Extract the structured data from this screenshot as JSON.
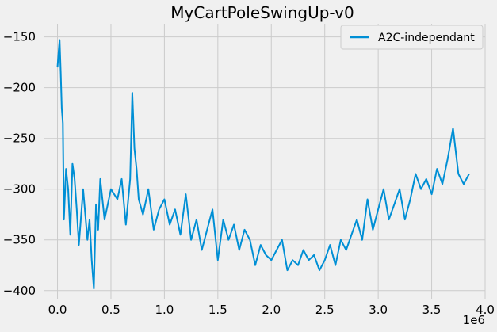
{
  "chart_data": {
    "type": "line",
    "title": "MyCartPoleSwingUp-v0",
    "xlabel": "",
    "ylabel": "",
    "x_offset_label": "1e6",
    "xlim": [
      -130000,
      4000000
    ],
    "ylim": [
      -408,
      -137
    ],
    "xticks": [
      0,
      500000.0,
      1000000.0,
      1500000.0,
      2000000.0,
      2500000.0,
      3000000.0,
      3500000.0,
      4000000.0
    ],
    "xtick_labels": [
      "0.0",
      "0.5",
      "1.0",
      "1.5",
      "2.0",
      "2.5",
      "3.0",
      "3.5",
      "4.0"
    ],
    "yticks": [
      -150,
      -200,
      -250,
      -300,
      -350,
      -400
    ],
    "ytick_labels": [
      "−150",
      "−200",
      "−250",
      "−300",
      "−350",
      "−400"
    ],
    "grid": true,
    "legend_position": "top-right",
    "series": [
      {
        "name": "A2C-independant",
        "color": "#008fd5",
        "x": [
          0,
          10000,
          20000,
          30000,
          40000,
          50000,
          60000,
          80000,
          100000,
          120000,
          140000,
          160000,
          180000,
          200000,
          240000,
          280000,
          300000,
          320000,
          340000,
          360000,
          380000,
          400000,
          440000,
          500000,
          560000,
          600000,
          640000,
          680000,
          700000,
          720000,
          740000,
          760000,
          800000,
          850000,
          900000,
          950000,
          1000000,
          1050000,
          1100000,
          1150000,
          1200000,
          1250000,
          1300000,
          1350000,
          1400000,
          1450000,
          1500000,
          1550000,
          1600000,
          1650000,
          1700000,
          1750000,
          1800000,
          1850000,
          1900000,
          1950000,
          2000000,
          2050000,
          2100000,
          2150000,
          2200000,
          2250000,
          2300000,
          2350000,
          2400000,
          2450000,
          2500000,
          2550000,
          2600000,
          2650000,
          2700000,
          2750000,
          2800000,
          2850000,
          2900000,
          2950000,
          3000000,
          3050000,
          3100000,
          3150000,
          3200000,
          3250000,
          3300000,
          3350000,
          3400000,
          3450000,
          3500000,
          3550000,
          3600000,
          3650000,
          3700000,
          3750000,
          3800000,
          3850000
        ],
        "values": [
          -180,
          -165,
          -153,
          -185,
          -220,
          -235,
          -330,
          -280,
          -300,
          -345,
          -275,
          -290,
          -320,
          -355,
          -300,
          -350,
          -330,
          -370,
          -398,
          -315,
          -340,
          -290,
          -330,
          -300,
          -310,
          -290,
          -335,
          -290,
          -205,
          -260,
          -280,
          -310,
          -325,
          -300,
          -340,
          -320,
          -310,
          -335,
          -320,
          -345,
          -305,
          -350,
          -330,
          -360,
          -340,
          -320,
          -370,
          -330,
          -350,
          -335,
          -360,
          -340,
          -350,
          -375,
          -355,
          -365,
          -370,
          -360,
          -350,
          -380,
          -370,
          -375,
          -360,
          -370,
          -365,
          -380,
          -370,
          -355,
          -375,
          -350,
          -360,
          -345,
          -330,
          -350,
          -310,
          -340,
          -320,
          -300,
          -330,
          -315,
          -300,
          -330,
          -310,
          -285,
          -300,
          -290,
          -305,
          -280,
          -295,
          -270,
          -240,
          -285,
          -295,
          -285
        ]
      }
    ]
  }
}
